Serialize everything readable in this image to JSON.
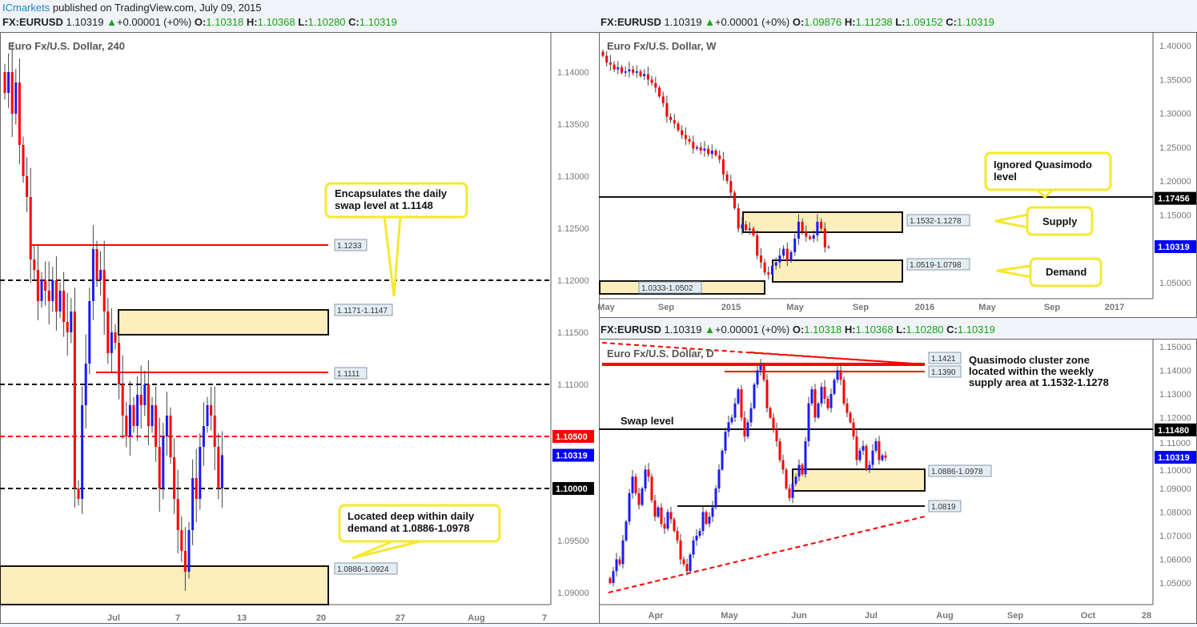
{
  "header": {
    "publisher": "ICmarkets",
    "published": "published on TradingView.com, July 09, 2015"
  },
  "charts": [
    {
      "id": "h4",
      "symbol": "FX:EURUSD",
      "price": "1.10319",
      "change": "+0.00001 (+0%)",
      "o": "1.10318",
      "h": "1.10368",
      "l": "1.10280",
      "c": "1.10319",
      "title": "Euro Fx/U.S. Dollar, 240"
    },
    {
      "id": "w",
      "symbol": "FX:EURUSD",
      "price": "1.10319",
      "change": "+0.00001 (+0%)",
      "o": "1.09876",
      "h": "1.11238",
      "l": "1.09152",
      "c": "1.10319",
      "title": "Euro Fx/U.S. Dollar, W"
    },
    {
      "id": "d",
      "symbol": "FX:EURUSD",
      "price": "1.10319",
      "change": "+0.00001 (+0%)",
      "o": "1.10318",
      "h": "1.10368",
      "l": "1.10280",
      "c": "1.10319",
      "title": "Euro Fx/U.S. Dollar, D"
    }
  ],
  "colors": {
    "up": "#1a1aff",
    "down": "#ff0000",
    "zone": "#fdeebb",
    "callout": "#f5e830",
    "current": "#0000ff"
  },
  "chart_data": [
    {
      "type": "candlestick",
      "title": "Euro Fx/U.S. Dollar, 240",
      "ylim": [
        1.0875,
        1.1425
      ],
      "yticks": [
        "1.14000",
        "1.13500",
        "1.13000",
        "1.12500",
        "1.12000",
        "1.11500",
        "1.11000",
        "1.10500",
        "1.10000",
        "1.09500",
        "1.09000"
      ],
      "xticks": [
        "Jul",
        "7",
        "13",
        "20",
        "27",
        "Aug",
        "7"
      ],
      "closes": [
        1.138,
        1.14,
        1.136,
        1.139,
        1.133,
        1.13,
        1.128,
        1.122,
        1.121,
        1.118,
        1.12,
        1.119,
        1.118,
        1.12,
        1.117,
        1.119,
        1.116,
        1.115,
        1.117,
        1.1,
        1.099,
        1.108,
        1.112,
        1.118,
        1.123,
        1.12,
        1.121,
        1.117,
        1.113,
        1.115,
        1.114,
        1.11,
        1.107,
        1.105,
        1.108,
        1.106,
        1.109,
        1.108,
        1.11,
        1.106,
        1.108,
        1.104,
        1.1,
        1.105,
        1.107,
        1.103,
        1.099,
        1.096,
        1.094,
        1.092,
        1.096,
        1.101,
        1.099,
        1.104,
        1.106,
        1.108,
        1.107,
        1.104,
        1.1,
        1.1032
      ],
      "levels": [
        {
          "label": "1.1233"
        },
        {
          "label": "1.1111"
        }
      ],
      "zones": [
        {
          "label": "1.1171-1.1147"
        },
        {
          "label": "1.0886-1.0924"
        }
      ],
      "axis_labels": [
        "1.10500",
        "1.10319",
        "1.10000"
      ],
      "annotations": [
        "Encapsulates the daily swap level at 1.1148",
        "Located deep within daily demand at 1.0886-1.0978"
      ]
    },
    {
      "type": "candlestick",
      "title": "Euro Fx/U.S. Dollar, W",
      "ylim": [
        1.03,
        1.42
      ],
      "yticks": [
        "1.40000",
        "1.35000",
        "1.30000",
        "1.25000",
        "1.20000",
        "1.15000",
        "1.05000"
      ],
      "xticks": [
        "May",
        "Sep",
        "2015",
        "May",
        "Sep",
        "2016",
        "May",
        "Sep",
        "2017"
      ],
      "closes": [
        1.385,
        1.375,
        1.372,
        1.365,
        1.368,
        1.36,
        1.362,
        1.365,
        1.36,
        1.362,
        1.355,
        1.358,
        1.35,
        1.345,
        1.338,
        1.325,
        1.315,
        1.295,
        1.29,
        1.285,
        1.275,
        1.268,
        1.262,
        1.258,
        1.248,
        1.25,
        1.245,
        1.248,
        1.24,
        1.245,
        1.238,
        1.232,
        1.21,
        1.2,
        1.183,
        1.16,
        1.13,
        1.136,
        1.128,
        1.13,
        1.12,
        1.09,
        1.08,
        1.065,
        1.062,
        1.075,
        1.08,
        1.09,
        1.1,
        1.082,
        1.095,
        1.115,
        1.14,
        1.125,
        1.118,
        1.115,
        1.12,
        1.14,
        1.13,
        1.102,
        1.103
      ],
      "levels": [
        {
          "label": "1.17456"
        }
      ],
      "zones": [
        {
          "label": "1.1532-1.1278"
        },
        {
          "label": "1.0519-1.0798"
        },
        {
          "label": "1.0333-1.0502"
        }
      ],
      "axis_labels": [
        "1.17456",
        "1.10319"
      ],
      "annotations": [
        "Ignored Quasimodo level",
        "Supply",
        "Demand"
      ]
    },
    {
      "type": "candlestick",
      "title": "Euro Fx/U.S. Dollar, D",
      "ylim": [
        1.045,
        1.152
      ],
      "yticks": [
        "1.15000",
        "1.14000",
        "1.13000",
        "1.12000",
        "1.11000",
        "1.10000",
        "1.09000",
        "1.08000",
        "1.07000",
        "1.06000",
        "1.05000"
      ],
      "xticks": [
        "Apr",
        "May",
        "Jun",
        "Jul",
        "Aug",
        "Sep",
        "Oct",
        "28"
      ],
      "closes": [
        1.05,
        1.055,
        1.06,
        1.058,
        1.068,
        1.076,
        1.088,
        1.095,
        1.088,
        1.083,
        1.09,
        1.098,
        1.095,
        1.085,
        1.078,
        1.082,
        1.075,
        1.073,
        1.08,
        1.077,
        1.072,
        1.068,
        1.06,
        1.058,
        1.055,
        1.062,
        1.068,
        1.07,
        1.072,
        1.08,
        1.075,
        1.078,
        1.082,
        1.09,
        1.098,
        1.106,
        1.114,
        1.118,
        1.12,
        1.126,
        1.132,
        1.12,
        1.112,
        1.118,
        1.124,
        1.134,
        1.14,
        1.142,
        1.136,
        1.124,
        1.12,
        1.115,
        1.11,
        1.102,
        1.098,
        1.09,
        1.086,
        1.092,
        1.095,
        1.1,
        1.096,
        1.11,
        1.126,
        1.132,
        1.12,
        1.126,
        1.133,
        1.128,
        1.124,
        1.13,
        1.136,
        1.14,
        1.136,
        1.126,
        1.122,
        1.118,
        1.112,
        1.102,
        1.106,
        1.108,
        1.098,
        1.1,
        1.106,
        1.11,
        1.102,
        1.104,
        1.103
      ],
      "levels": [
        {
          "label": "1.1421"
        },
        {
          "label": "1.1390"
        },
        {
          "label": "1.0819"
        }
      ],
      "zones": [
        {
          "label": "1.0886-1.0978"
        }
      ],
      "axis_labels": [
        "1.11480",
        "1.10319"
      ],
      "annotations": [
        "Swap level",
        "Quasimodo cluster zone",
        "located within the weekly",
        "supply area at 1.1532-1.1278"
      ]
    }
  ]
}
